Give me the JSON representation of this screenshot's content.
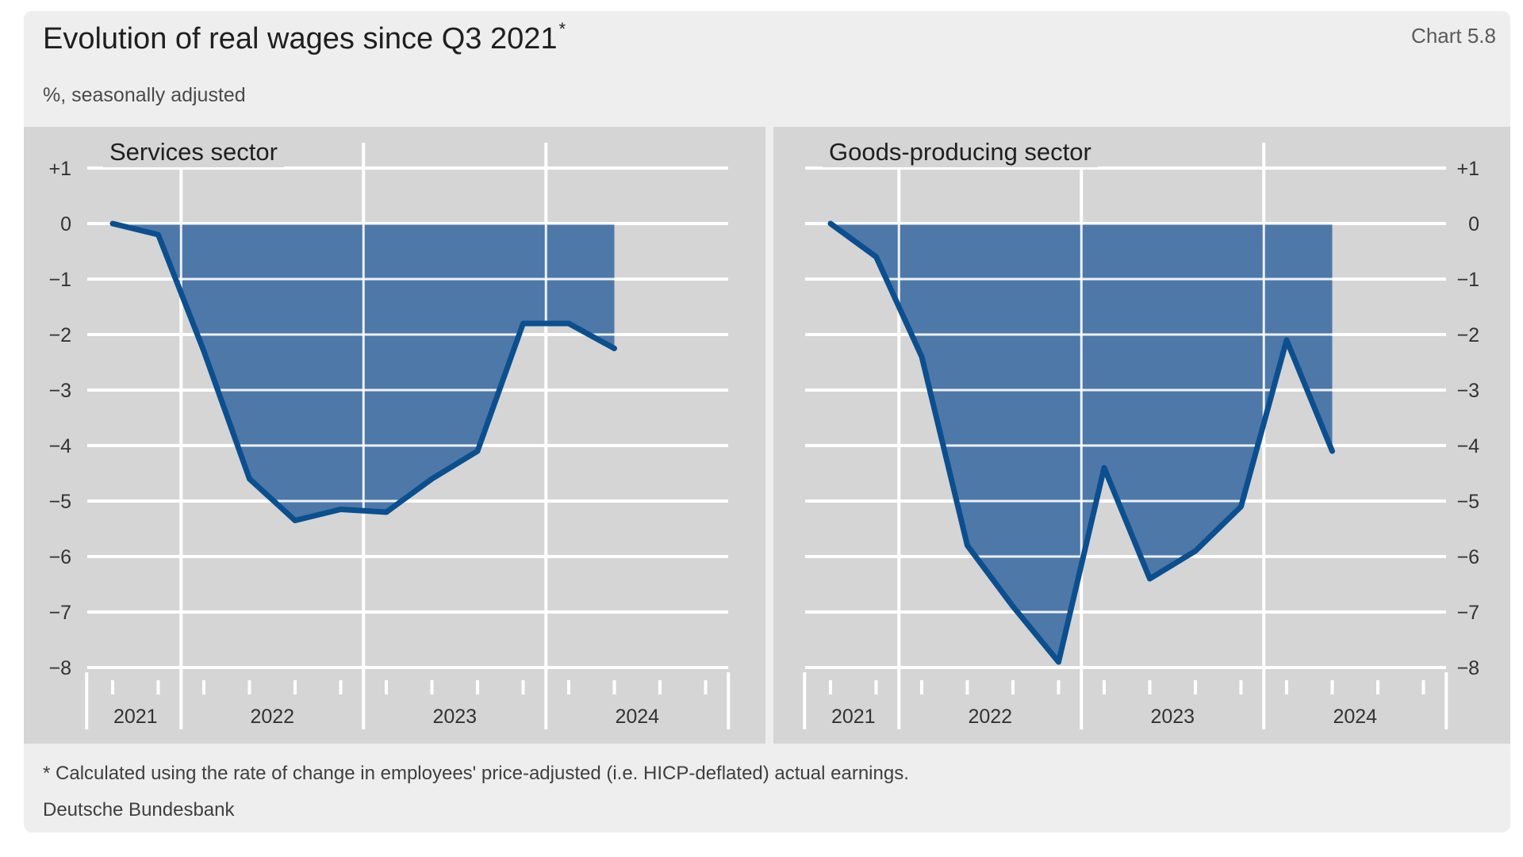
{
  "title": "Evolution of real wages since Q3 2021",
  "title_marker": "*",
  "chart_id": "Chart 5.8",
  "subtitle": "%, seasonally adjusted",
  "footnote": "* Calculated using the rate of change in employees' price-adjusted (i.e. HICP-deflated) actual earnings.",
  "source": "Deutsche Bundesbank",
  "colors": {
    "line": "#0b4f8f",
    "fill": "#4e78a8",
    "panel": "#d5d5d5",
    "grid": "#ffffff"
  },
  "chart_data": [
    {
      "type": "area",
      "title": "Services sector",
      "y_axis_side": "left",
      "ylim": [
        -8,
        1
      ],
      "yticks": [
        1,
        0,
        -1,
        -2,
        -3,
        -4,
        -5,
        -6,
        -7,
        -8
      ],
      "ytick_labels": [
        "+1",
        "0",
        "−1",
        "−2",
        "−3",
        "−4",
        "−5",
        "−6",
        "−7",
        "−8"
      ],
      "x_categories": [
        "2021 Q3",
        "2021 Q4",
        "2022 Q1",
        "2022 Q2",
        "2022 Q3",
        "2022 Q4",
        "2023 Q1",
        "2023 Q2",
        "2023 Q3",
        "2023 Q4",
        "2024 Q1",
        "2024 Q2"
      ],
      "year_labels": [
        "2021",
        "2022",
        "2023",
        "2024"
      ],
      "values": [
        0,
        -0.2,
        -2.3,
        -4.6,
        -5.35,
        -5.15,
        -5.2,
        -4.6,
        -4.1,
        -1.8,
        -1.8,
        -2.25
      ],
      "shading_end": "2024 Q2",
      "grid": true
    },
    {
      "type": "area",
      "title": "Goods-producing sector",
      "y_axis_side": "right",
      "ylim": [
        -8,
        1
      ],
      "yticks": [
        1,
        0,
        -1,
        -2,
        -3,
        -4,
        -5,
        -6,
        -7,
        -8
      ],
      "ytick_labels": [
        "+1",
        "0",
        "−1",
        "−2",
        "−3",
        "−4",
        "−5",
        "−6",
        "−7",
        "−8"
      ],
      "x_categories": [
        "2021 Q3",
        "2021 Q4",
        "2022 Q1",
        "2022 Q2",
        "2022 Q3",
        "2022 Q4",
        "2023 Q1",
        "2023 Q2",
        "2023 Q3",
        "2023 Q4",
        "2024 Q1",
        "2024 Q2"
      ],
      "year_labels": [
        "2021",
        "2022",
        "2023",
        "2024"
      ],
      "values": [
        0,
        -0.6,
        -2.4,
        -5.8,
        -6.9,
        -7.9,
        -4.4,
        -6.4,
        -5.9,
        -5.1,
        -2.1,
        -4.1
      ],
      "shading_end": "2024 Q2",
      "grid": true
    }
  ]
}
